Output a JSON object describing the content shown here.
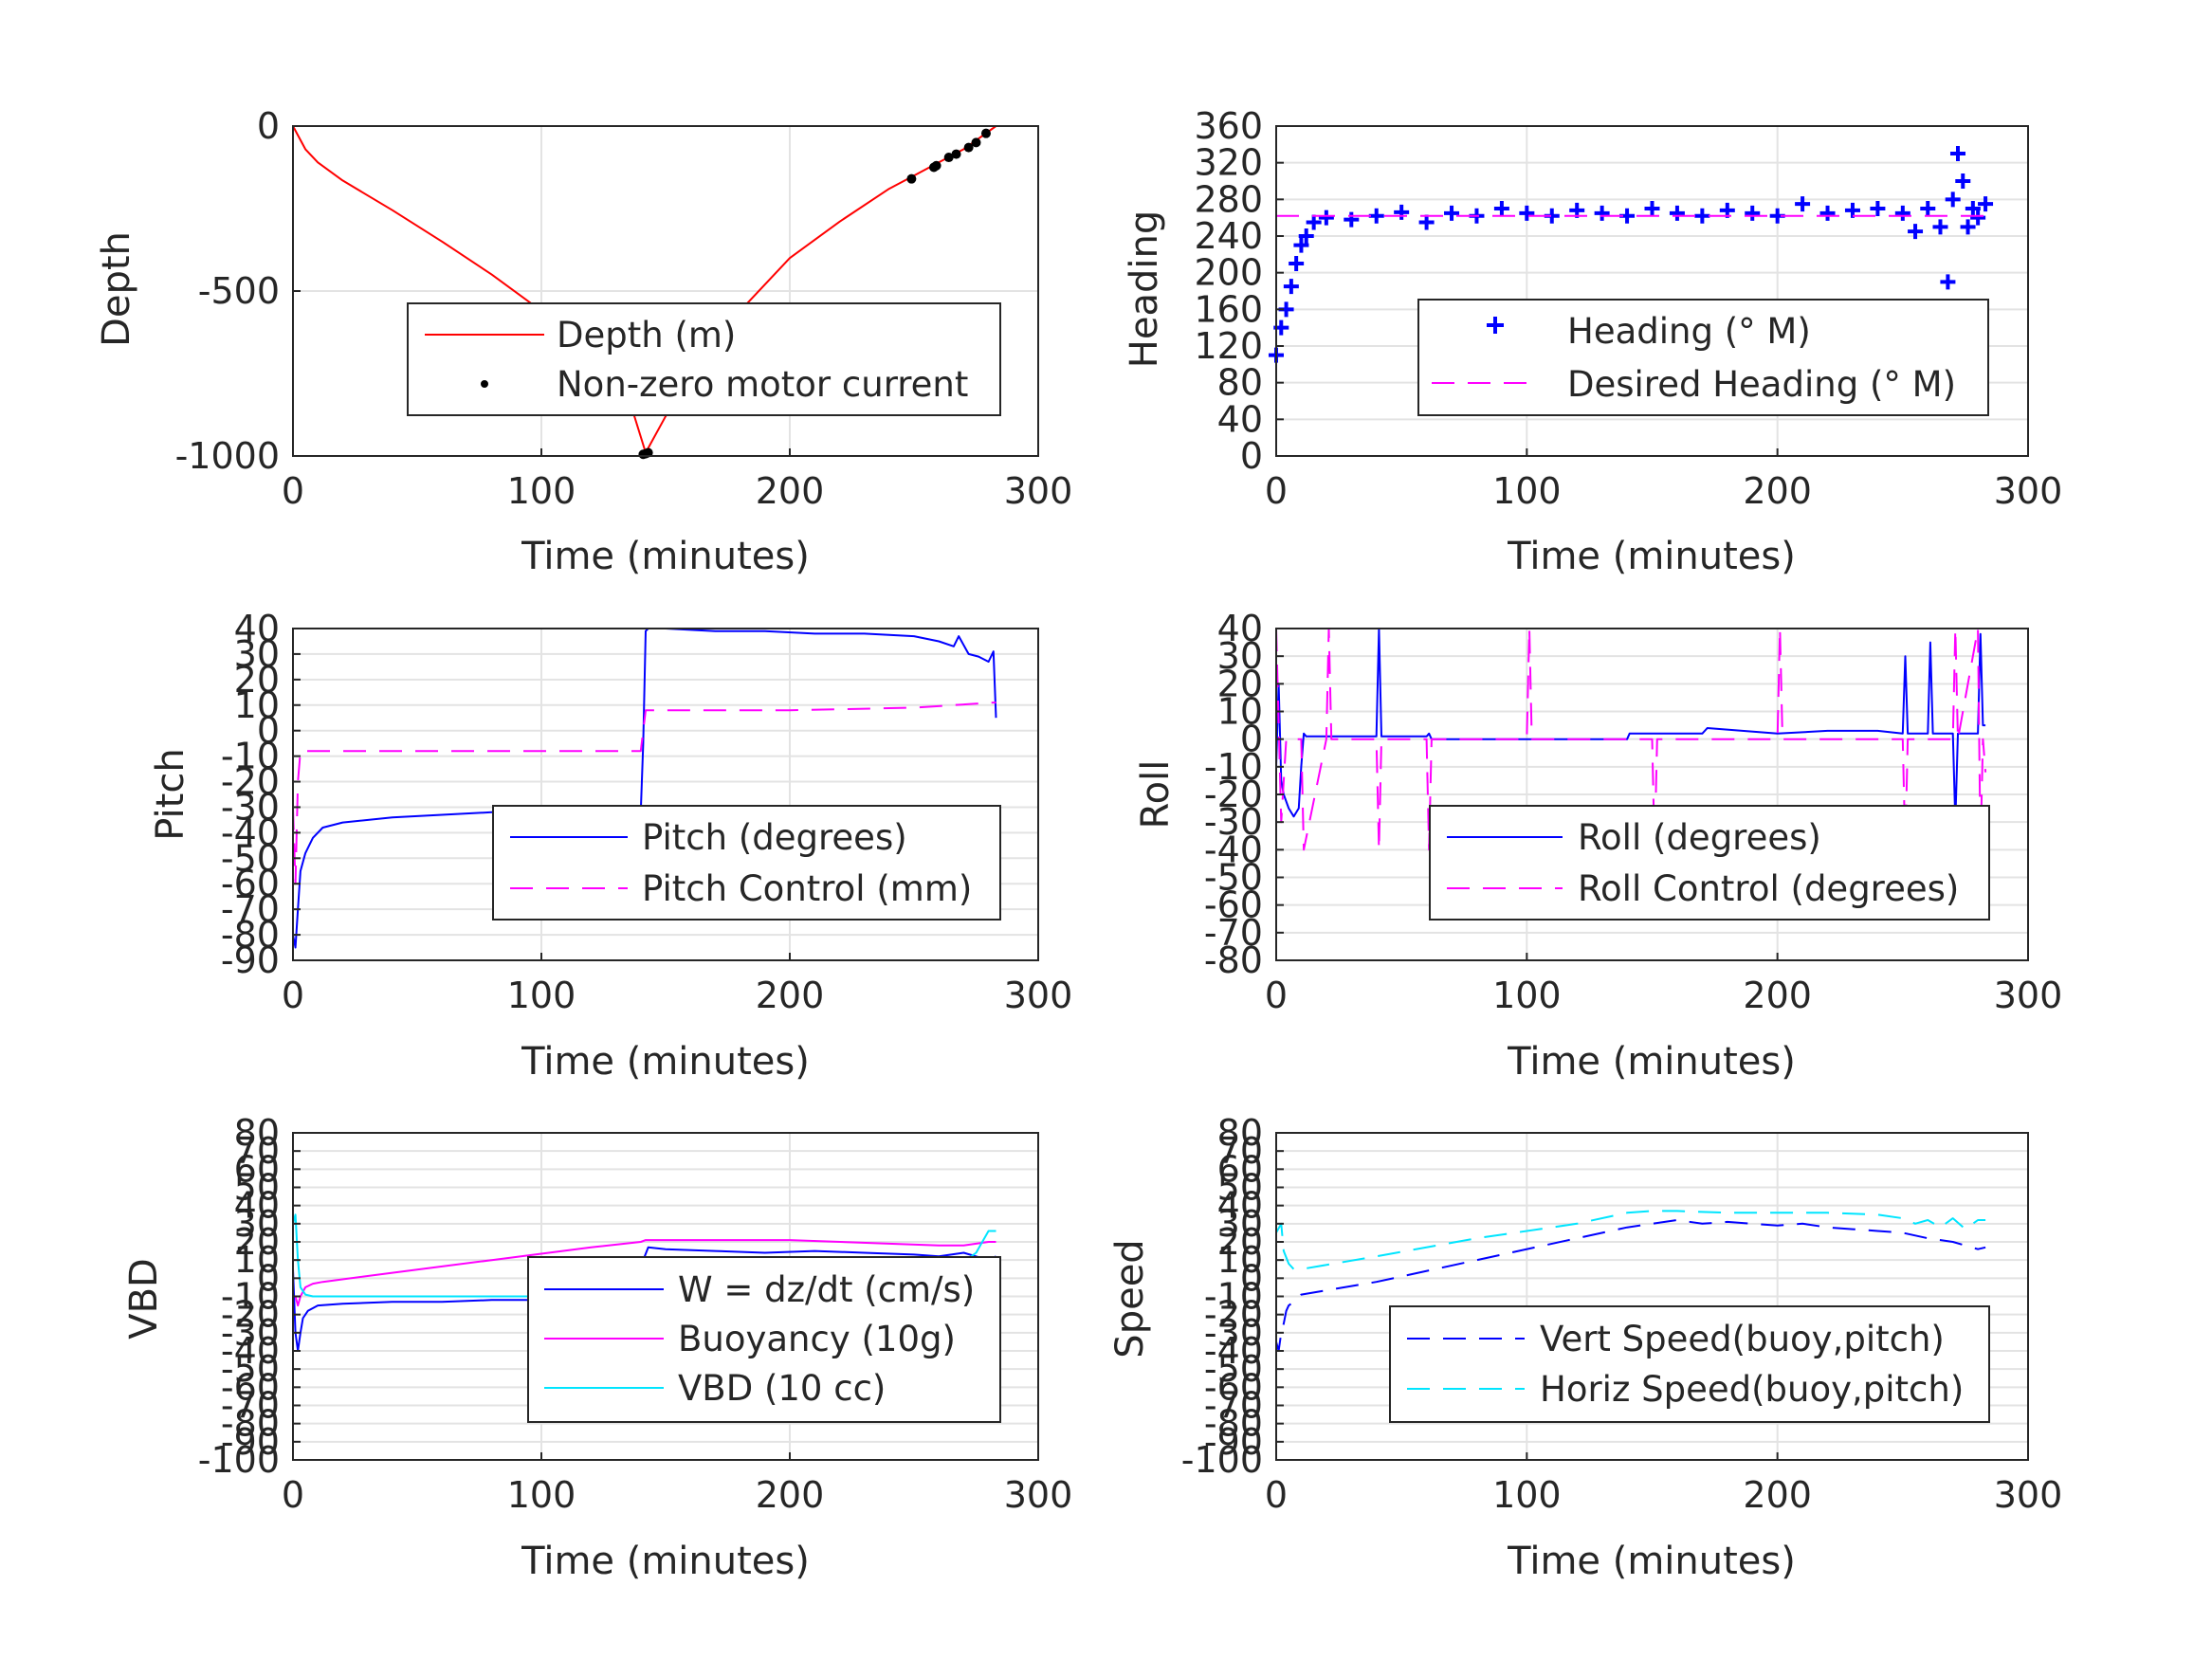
{
  "figure": {
    "background": "#ffffff",
    "grid_color": "#e3e3e3",
    "axis_color": "#262626"
  },
  "chart_data": [
    {
      "type": "line",
      "xlabel": "Time (minutes)",
      "ylabel": "Depth",
      "xlim": [
        0,
        300
      ],
      "ylim": [
        -1000,
        0
      ],
      "xticks": [
        0,
        100,
        200,
        300
      ],
      "yticks": [
        -1000,
        -500,
        0
      ],
      "grid": true,
      "legend_position": "lower-right",
      "series": [
        {
          "name": "Depth (m)",
          "color": "#ff0000",
          "style": "solid",
          "x": [
            0,
            5,
            10,
            20,
            40,
            60,
            80,
            100,
            120,
            135,
            142,
            150,
            160,
            180,
            200,
            220,
            240,
            250,
            260,
            270,
            283
          ],
          "y": [
            0,
            -70,
            -110,
            -165,
            -255,
            -350,
            -450,
            -560,
            -690,
            -820,
            -990,
            -880,
            -760,
            -560,
            -400,
            -290,
            -190,
            -150,
            -110,
            -70,
            0
          ]
        },
        {
          "name": "Non-zero motor current",
          "color": "#000000",
          "style": "markers",
          "x": [
            141,
            142,
            143,
            249,
            258,
            259,
            264,
            267,
            272,
            275,
            279
          ],
          "y": [
            -995,
            -993,
            -990,
            -160,
            -125,
            -120,
            -95,
            -85,
            -65,
            -50,
            -22
          ]
        }
      ]
    },
    {
      "type": "line",
      "xlabel": "Time (minutes)",
      "ylabel": "Heading",
      "xlim": [
        0,
        300
      ],
      "ylim": [
        0,
        360
      ],
      "xticks": [
        0,
        100,
        200,
        300
      ],
      "yticks": [
        0,
        40,
        80,
        120,
        160,
        200,
        240,
        280,
        320,
        360
      ],
      "grid": true,
      "legend_position": "lower-right",
      "series": [
        {
          "name": "Heading (° M)",
          "color": "#0000ff",
          "style": "plus-markers",
          "x": [
            0,
            2,
            4,
            6,
            8,
            10,
            12,
            15,
            20,
            30,
            40,
            50,
            60,
            70,
            80,
            90,
            100,
            110,
            120,
            130,
            140,
            150,
            160,
            170,
            180,
            190,
            200,
            210,
            220,
            230,
            240,
            250,
            255,
            260,
            265,
            268,
            270,
            272,
            274,
            276,
            278,
            280,
            283
          ],
          "y": [
            110,
            140,
            160,
            185,
            210,
            230,
            240,
            255,
            260,
            258,
            262,
            266,
            255,
            265,
            262,
            270,
            265,
            262,
            268,
            265,
            262,
            270,
            265,
            262,
            268,
            265,
            262,
            275,
            265,
            268,
            270,
            265,
            245,
            270,
            250,
            190,
            280,
            330,
            300,
            250,
            270,
            260,
            275
          ]
        },
        {
          "name": "Desired Heading (° M)",
          "color": "#ff00ff",
          "style": "dashed",
          "x": [
            0,
            283
          ],
          "y": [
            262,
            262
          ]
        }
      ]
    },
    {
      "type": "line",
      "xlabel": "Time (minutes)",
      "ylabel": "Pitch",
      "xlim": [
        0,
        300
      ],
      "ylim": [
        -90,
        40
      ],
      "xticks": [
        0,
        100,
        200,
        300
      ],
      "yticks": [
        -90,
        -80,
        -70,
        -60,
        -50,
        -40,
        -30,
        -20,
        -10,
        0,
        10,
        20,
        30,
        40
      ],
      "grid": true,
      "legend_position": "lower-right",
      "series": [
        {
          "name": "Pitch (degrees)",
          "color": "#0000ff",
          "style": "solid",
          "x": [
            0,
            1,
            2,
            3,
            5,
            8,
            12,
            20,
            40,
            60,
            80,
            100,
            120,
            140,
            141,
            142,
            143,
            150,
            170,
            190,
            210,
            230,
            250,
            260,
            266,
            268,
            272,
            276,
            280,
            282,
            283
          ],
          "y": [
            -80,
            -85,
            -70,
            -55,
            -48,
            -42,
            -38,
            -36,
            -34,
            -33,
            -32,
            -32,
            -33,
            -32,
            -5,
            39,
            40,
            40,
            39,
            39,
            38,
            38,
            37,
            35,
            33,
            37,
            30,
            29,
            27,
            31,
            5
          ]
        },
        {
          "name": "Pitch Control (mm)",
          "color": "#ff00ff",
          "style": "dashed",
          "x": [
            0,
            1,
            2,
            3,
            10,
            60,
            100,
            140,
            141,
            142,
            150,
            200,
            250,
            282,
            283
          ],
          "y": [
            -30,
            -60,
            -20,
            -8,
            -8,
            -8,
            -8,
            -8,
            0,
            8,
            8,
            8,
            9,
            11,
            11
          ]
        }
      ]
    },
    {
      "type": "line",
      "xlabel": "Time (minutes)",
      "ylabel": "Roll",
      "xlim": [
        0,
        300
      ],
      "ylim": [
        -80,
        40
      ],
      "xticks": [
        0,
        100,
        200,
        300
      ],
      "yticks": [
        -80,
        -70,
        -60,
        -50,
        -40,
        -30,
        -20,
        -10,
        0,
        10,
        20,
        30,
        40
      ],
      "grid": true,
      "legend_position": "lower-right",
      "series": [
        {
          "name": "Roll (degrees)",
          "color": "#0000ff",
          "style": "solid",
          "x": [
            0,
            1,
            2,
            3,
            5,
            7,
            9,
            10,
            11,
            12,
            40,
            41,
            42,
            60,
            61,
            62,
            80,
            100,
            110,
            140,
            141,
            160,
            170,
            172,
            200,
            220,
            240,
            250,
            251,
            252,
            260,
            261,
            262,
            270,
            271,
            272,
            280,
            281,
            282,
            283
          ],
          "y": [
            -10,
            20,
            -15,
            -20,
            -25,
            -28,
            -25,
            -10,
            2,
            1,
            1,
            40,
            1,
            1,
            2,
            0,
            0,
            0,
            0,
            0,
            2,
            2,
            2,
            4,
            2,
            3,
            3,
            2,
            30,
            2,
            2,
            35,
            2,
            2,
            -30,
            2,
            2,
            38,
            5,
            5
          ]
        },
        {
          "name": "Roll Control (degrees)",
          "color": "#ff00ff",
          "style": "dashed",
          "x": [
            0,
            2,
            4,
            10,
            11,
            20,
            21,
            22,
            40,
            41,
            42,
            60,
            61,
            62,
            100,
            101,
            102,
            150,
            151,
            152,
            200,
            201,
            202,
            250,
            251,
            252,
            270,
            271,
            272,
            280,
            281,
            282,
            283
          ],
          "y": [
            40,
            -30,
            0,
            0,
            -40,
            0,
            40,
            0,
            0,
            -40,
            0,
            0,
            -40,
            0,
            0,
            40,
            0,
            0,
            -40,
            0,
            0,
            40,
            0,
            0,
            -40,
            0,
            0,
            40,
            0,
            40,
            -40,
            0,
            -12
          ]
        }
      ]
    },
    {
      "type": "line",
      "xlabel": "Time (minutes)",
      "ylabel": "VBD",
      "xlim": [
        0,
        300
      ],
      "ylim": [
        -100,
        80
      ],
      "xticks": [
        0,
        100,
        200,
        300
      ],
      "yticks": [
        -100,
        -90,
        -80,
        -70,
        -60,
        -50,
        -40,
        -30,
        -20,
        -10,
        0,
        10,
        20,
        30,
        40,
        50,
        60,
        70,
        80
      ],
      "ytick_labels": [
        "-100",
        "-90",
        "-80",
        "-70",
        "-60",
        "-50",
        "-40",
        "-30",
        "-20",
        "-10",
        "0",
        "10",
        "20",
        "30",
        "40",
        "50",
        "60",
        "70",
        "80"
      ],
      "grid": true,
      "legend_position": "lower-right",
      "series": [
        {
          "name": "W = dz/dt (cm/s)",
          "color": "#0000ff",
          "style": "solid",
          "x": [
            0,
            1,
            2,
            3,
            4,
            6,
            10,
            20,
            40,
            60,
            80,
            100,
            120,
            138,
            140,
            141,
            143,
            150,
            170,
            190,
            210,
            230,
            250,
            260,
            270,
            280,
            283
          ],
          "y": [
            5,
            -30,
            -40,
            -30,
            -22,
            -18,
            -15,
            -14,
            -13,
            -13,
            -12,
            -12,
            -11,
            -11,
            -8,
            10,
            17,
            16,
            15,
            14,
            15,
            14,
            13,
            12,
            14,
            10,
            12
          ]
        },
        {
          "name": "Buoyancy (10g)",
          "color": "#ff00ff",
          "style": "solid",
          "x": [
            0,
            1,
            2,
            3,
            5,
            8,
            12,
            40,
            80,
            120,
            140,
            142,
            160,
            200,
            240,
            260,
            270,
            280,
            283
          ],
          "y": [
            -10,
            -10,
            -15,
            -10,
            -5,
            -3,
            -2,
            3,
            10,
            17,
            20,
            21,
            21,
            21,
            19,
            18,
            18,
            20,
            20
          ]
        },
        {
          "name": "VBD (10 cc)",
          "color": "#00e5ff",
          "style": "solid",
          "x": [
            0,
            1,
            2,
            3,
            5,
            8,
            20,
            60,
            100,
            138,
            140,
            142,
            160,
            200,
            250,
            270,
            275,
            280,
            283
          ],
          "y": [
            30,
            35,
            10,
            -5,
            -9,
            -10,
            -10,
            -10,
            -10,
            -10,
            -4,
            7,
            7,
            7,
            8,
            9,
            14,
            26,
            26
          ]
        }
      ]
    },
    {
      "type": "line",
      "xlabel": "Time (minutes)",
      "ylabel": "Speed",
      "xlim": [
        0,
        300
      ],
      "ylim": [
        -100,
        80
      ],
      "xticks": [
        0,
        100,
        200,
        300
      ],
      "yticks": [
        -100,
        -90,
        -80,
        -70,
        -60,
        -50,
        -40,
        -30,
        -20,
        -10,
        0,
        10,
        20,
        30,
        40,
        50,
        60,
        70,
        80
      ],
      "ytick_labels": [
        "-100",
        "-90",
        "-80",
        "-70",
        "-60",
        "-50",
        "-40",
        "-30",
        "-20",
        "-10",
        "0",
        "10",
        "20",
        "30",
        "40",
        "50",
        "60",
        "70",
        "80"
      ],
      "grid": true,
      "legend_position": "lower-right",
      "series": [
        {
          "name": "Vert Speed(buoy,pitch)",
          "color": "#0000ff",
          "style": "dashed",
          "x": [
            0,
            1,
            2,
            3,
            4,
            5,
            6,
            8,
            10,
            40,
            80,
            120,
            140,
            150,
            160,
            170,
            180,
            190,
            200,
            210,
            220,
            230,
            240,
            250,
            260,
            270,
            275,
            280,
            283
          ],
          "y": [
            -35,
            -40,
            -30,
            -25,
            -18,
            -15,
            -14,
            -12,
            -9,
            -2,
            10,
            22,
            28,
            30,
            32,
            30,
            31,
            30,
            29,
            30,
            28,
            27,
            26,
            25,
            22,
            20,
            18,
            16,
            17
          ]
        },
        {
          "name": "Horiz Speed(buoy,pitch)",
          "color": "#00e5ff",
          "style": "dashed",
          "x": [
            0,
            2,
            3,
            5,
            7,
            10,
            40,
            80,
            120,
            140,
            150,
            160,
            180,
            200,
            220,
            240,
            250,
            255,
            260,
            265,
            270,
            275,
            280,
            283
          ],
          "y": [
            25,
            30,
            15,
            8,
            5,
            5,
            12,
            22,
            30,
            36,
            37,
            37,
            36,
            36,
            36,
            35,
            33,
            30,
            32,
            28,
            33,
            27,
            32,
            32
          ]
        }
      ]
    }
  ]
}
